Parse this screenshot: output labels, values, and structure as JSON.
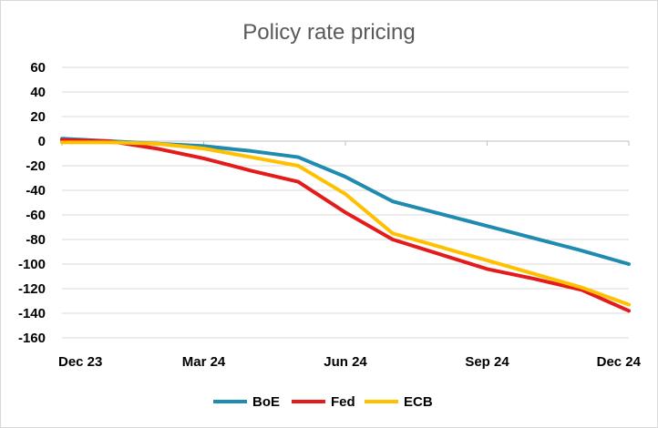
{
  "chart_data": {
    "type": "line",
    "title": "Policy rate pricing",
    "xlabel": "",
    "ylabel": "",
    "ylim": [
      -160,
      60
    ],
    "yticks": [
      60,
      40,
      20,
      0,
      -20,
      -40,
      -60,
      -80,
      -100,
      -120,
      -140,
      -160
    ],
    "x_ticks": [
      "Dec 23",
      "Mar 24",
      "Jun 24",
      "Sep 24",
      "Dec 24"
    ],
    "x_tick_positions": [
      0,
      3,
      6,
      9,
      12
    ],
    "grid": "horizontal",
    "legend": "bottom",
    "series": [
      {
        "name": "BoE",
        "color": "#1f8bb0",
        "x": [
          0,
          1,
          2,
          3,
          4,
          5,
          6,
          7,
          8,
          9,
          10,
          11,
          12
        ],
        "values": [
          2,
          0,
          -2,
          -4,
          -8,
          -13,
          -29,
          -49,
          -59,
          -69,
          -79,
          -89,
          -100
        ]
      },
      {
        "name": "Fed",
        "color": "#e31b1b",
        "x": [
          0,
          1,
          2,
          3,
          4,
          5,
          6,
          7,
          8,
          9,
          10,
          11,
          12
        ],
        "values": [
          1,
          0,
          -6,
          -14,
          -24,
          -33,
          -58,
          -80,
          -92,
          -104,
          -112,
          -121,
          -138
        ]
      },
      {
        "name": "ECB",
        "color": "#ffc000",
        "x": [
          0,
          1,
          2,
          3,
          4,
          5,
          6,
          7,
          8,
          9,
          10,
          11,
          12
        ],
        "values": [
          -1,
          -1,
          -2,
          -6,
          -13,
          -20,
          -43,
          -75,
          -86,
          -97,
          -108,
          -119,
          -133
        ]
      }
    ]
  }
}
